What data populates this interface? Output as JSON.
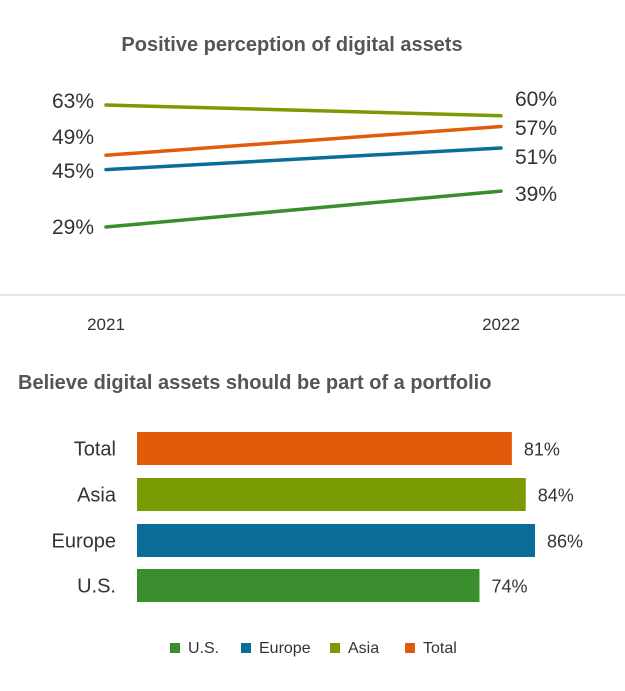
{
  "chart_data": [
    {
      "type": "line",
      "title": "Positive perception of digital assets",
      "x": [
        "2021",
        "2022"
      ],
      "series": [
        {
          "name": "Asia",
          "color": "#7a9a01",
          "values": [
            63,
            60
          ],
          "labels": [
            "63%",
            "60%"
          ]
        },
        {
          "name": "Total",
          "color": "#e05c0a",
          "values": [
            49,
            57
          ],
          "labels": [
            "49%",
            "57%"
          ]
        },
        {
          "name": "Europe",
          "color": "#0b6e99",
          "values": [
            45,
            51
          ],
          "labels": [
            "45%",
            "51%"
          ]
        },
        {
          "name": "U.S.",
          "color": "#3a8e2e",
          "values": [
            29,
            39
          ],
          "labels": [
            "29%",
            "39%"
          ]
        }
      ],
      "unit": "%"
    },
    {
      "type": "bar",
      "orientation": "horizontal",
      "title": "Believe digital assets should be part of a portfolio",
      "categories": [
        "Total",
        "Asia",
        "Europe",
        "U.S."
      ],
      "values": [
        81,
        84,
        86,
        74
      ],
      "labels": [
        "81%",
        "84%",
        "86%",
        "74%"
      ],
      "colors": [
        "#e05c0a",
        "#7a9a01",
        "#0b6e99",
        "#3a8e2e"
      ],
      "unit": "%"
    }
  ],
  "legend": {
    "placement": "bottom-center",
    "items": [
      {
        "label": "U.S.",
        "color": "#3a8e2e"
      },
      {
        "label": "Europe",
        "color": "#0b6e99"
      },
      {
        "label": "Asia",
        "color": "#7a9a01"
      },
      {
        "label": "Total",
        "color": "#e05c0a"
      }
    ]
  }
}
